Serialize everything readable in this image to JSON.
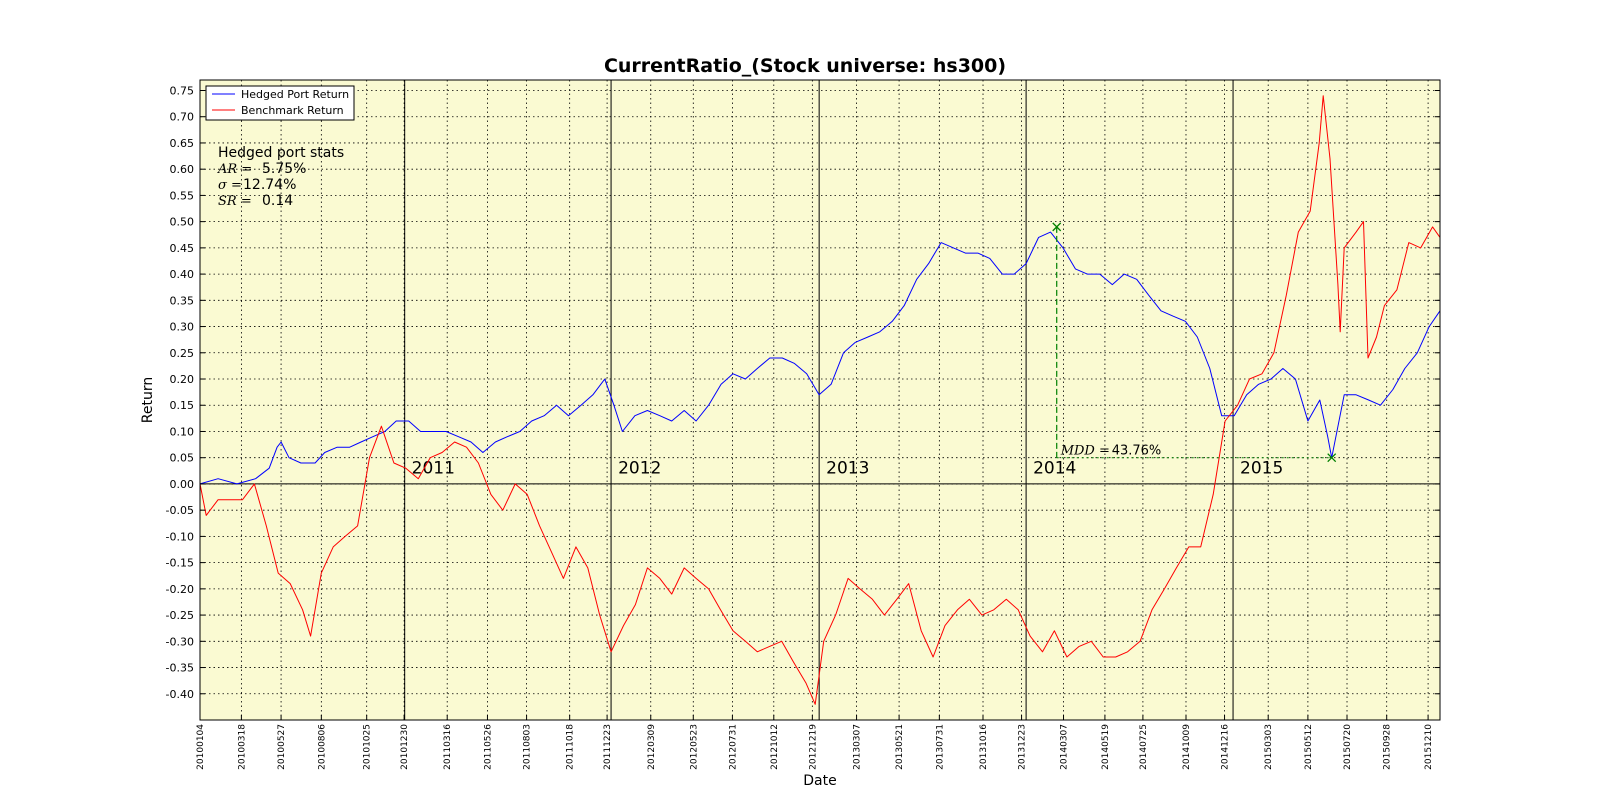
{
  "chart_data": {
    "type": "line",
    "title": "CurrentRatio_(Stock universe: hs300)",
    "xlabel": "Date",
    "ylabel": "Return",
    "ylim": [
      -0.45,
      0.77
    ],
    "xlim": [
      "2010-01-04",
      "2015-12-31"
    ],
    "grid": true,
    "background_color": "#fafad2",
    "yticks": [
      -0.4,
      -0.35,
      -0.3,
      -0.25,
      -0.2,
      -0.15,
      -0.1,
      -0.05,
      0.0,
      0.05,
      0.1,
      0.15,
      0.2,
      0.25,
      0.3,
      0.35,
      0.4,
      0.45,
      0.5,
      0.55,
      0.6,
      0.65,
      0.7,
      0.75
    ],
    "ytick_labels": [
      "-0.40",
      "-0.35",
      "-0.30",
      "-0.25",
      "-0.20",
      "-0.15",
      "-0.10",
      "-0.05",
      "0.00",
      "0.05",
      "0.10",
      "0.15",
      "0.20",
      "0.25",
      "0.30",
      "0.35",
      "0.40",
      "0.45",
      "0.50",
      "0.55",
      "0.60",
      "0.65",
      "0.70",
      "0.75"
    ],
    "xticks": [
      "20100104",
      "20100318",
      "20100527",
      "20100806",
      "20101025",
      "20101230",
      "20110316",
      "20110526",
      "20110803",
      "20111018",
      "20111223",
      "20120309",
      "20120523",
      "20120731",
      "20121012",
      "20121219",
      "20130307",
      "20130521",
      "20130731",
      "20131016",
      "20131223",
      "20140307",
      "20140519",
      "20140725",
      "20141009",
      "20141216",
      "20150303",
      "20150512",
      "20150720",
      "20150928",
      "20151210"
    ],
    "year_markers": [
      {
        "date": "2010-12-31",
        "label": "2011"
      },
      {
        "date": "2011-12-30",
        "label": "2012"
      },
      {
        "date": "2012-12-31",
        "label": "2013"
      },
      {
        "date": "2013-12-31",
        "label": "2014"
      },
      {
        "date": "2014-12-31",
        "label": "2015"
      }
    ],
    "legend": {
      "placement": "top-left",
      "entries": [
        "Hedged Port Return",
        "Benchmark Return"
      ]
    },
    "series": [
      {
        "name": "Hedged Port Return",
        "color": "#0000ff",
        "points": [
          [
            "2010-01-04",
            0.0
          ],
          [
            "2010-02-05",
            0.01
          ],
          [
            "2010-03-10",
            0.0
          ],
          [
            "2010-04-12",
            0.01
          ],
          [
            "2010-05-06",
            0.03
          ],
          [
            "2010-05-20",
            0.07
          ],
          [
            "2010-05-27",
            0.08
          ],
          [
            "2010-06-10",
            0.05
          ],
          [
            "2010-07-01",
            0.04
          ],
          [
            "2010-07-26",
            0.04
          ],
          [
            "2010-08-12",
            0.06
          ],
          [
            "2010-09-03",
            0.07
          ],
          [
            "2010-09-25",
            0.07
          ],
          [
            "2010-10-15",
            0.08
          ],
          [
            "2010-11-05",
            0.09
          ],
          [
            "2010-11-26",
            0.1
          ],
          [
            "2010-12-16",
            0.12
          ],
          [
            "2011-01-07",
            0.12
          ],
          [
            "2011-01-28",
            0.1
          ],
          [
            "2011-02-20",
            0.1
          ],
          [
            "2011-03-14",
            0.1
          ],
          [
            "2011-04-05",
            0.09
          ],
          [
            "2011-04-27",
            0.08
          ],
          [
            "2011-05-18",
            0.06
          ],
          [
            "2011-06-09",
            0.08
          ],
          [
            "2011-06-30",
            0.09
          ],
          [
            "2011-07-22",
            0.1
          ],
          [
            "2011-08-12",
            0.12
          ],
          [
            "2011-09-03",
            0.13
          ],
          [
            "2011-09-25",
            0.15
          ],
          [
            "2011-10-16",
            0.13
          ],
          [
            "2011-11-07",
            0.15
          ],
          [
            "2011-11-28",
            0.17
          ],
          [
            "2011-12-19",
            0.2
          ],
          [
            "2012-01-04",
            0.15
          ],
          [
            "2012-01-19",
            0.1
          ],
          [
            "2012-02-10",
            0.13
          ],
          [
            "2012-03-03",
            0.14
          ],
          [
            "2012-03-25",
            0.13
          ],
          [
            "2012-04-15",
            0.12
          ],
          [
            "2012-05-07",
            0.14
          ],
          [
            "2012-05-28",
            0.12
          ],
          [
            "2012-06-19",
            0.15
          ],
          [
            "2012-07-11",
            0.19
          ],
          [
            "2012-08-01",
            0.21
          ],
          [
            "2012-08-23",
            0.2
          ],
          [
            "2012-09-13",
            0.22
          ],
          [
            "2012-10-05",
            0.24
          ],
          [
            "2012-10-27",
            0.24
          ],
          [
            "2012-11-17",
            0.23
          ],
          [
            "2012-12-09",
            0.21
          ],
          [
            "2012-12-31",
            0.17
          ],
          [
            "2013-01-21",
            0.19
          ],
          [
            "2013-02-12",
            0.25
          ],
          [
            "2013-03-05",
            0.27
          ],
          [
            "2013-03-27",
            0.28
          ],
          [
            "2013-04-17",
            0.29
          ],
          [
            "2013-05-09",
            0.31
          ],
          [
            "2013-05-30",
            0.34
          ],
          [
            "2013-06-21",
            0.39
          ],
          [
            "2013-07-12",
            0.42
          ],
          [
            "2013-08-03",
            0.46
          ],
          [
            "2013-08-25",
            0.45
          ],
          [
            "2013-09-15",
            0.44
          ],
          [
            "2013-10-07",
            0.44
          ],
          [
            "2013-10-28",
            0.43
          ],
          [
            "2013-11-19",
            0.4
          ],
          [
            "2013-12-10",
            0.4
          ],
          [
            "2013-12-31",
            0.42
          ],
          [
            "2014-01-22",
            0.47
          ],
          [
            "2014-02-12",
            0.48
          ],
          [
            "2014-03-06",
            0.45
          ],
          [
            "2014-03-28",
            0.41
          ],
          [
            "2014-04-18",
            0.4
          ],
          [
            "2014-05-10",
            0.4
          ],
          [
            "2014-06-01",
            0.38
          ],
          [
            "2014-06-22",
            0.4
          ],
          [
            "2014-07-14",
            0.39
          ],
          [
            "2014-08-04",
            0.36
          ],
          [
            "2014-08-26",
            0.33
          ],
          [
            "2014-09-16",
            0.32
          ],
          [
            "2014-10-08",
            0.31
          ],
          [
            "2014-10-29",
            0.28
          ],
          [
            "2014-11-20",
            0.22
          ],
          [
            "2014-12-11",
            0.13
          ],
          [
            "2015-01-02",
            0.13
          ],
          [
            "2015-01-24",
            0.17
          ],
          [
            "2015-02-14",
            0.19
          ],
          [
            "2015-03-08",
            0.2
          ],
          [
            "2015-03-29",
            0.22
          ],
          [
            "2015-04-20",
            0.2
          ],
          [
            "2015-05-12",
            0.12
          ],
          [
            "2015-06-02",
            0.16
          ],
          [
            "2015-06-16",
            0.09
          ],
          [
            "2015-06-23",
            0.05
          ],
          [
            "2015-07-15",
            0.17
          ],
          [
            "2015-08-05",
            0.17
          ],
          [
            "2015-08-27",
            0.16
          ],
          [
            "2015-09-17",
            0.15
          ],
          [
            "2015-10-09",
            0.18
          ],
          [
            "2015-10-30",
            0.22
          ],
          [
            "2015-11-21",
            0.25
          ],
          [
            "2015-12-12",
            0.3
          ],
          [
            "2015-12-31",
            0.33
          ]
        ]
      },
      {
        "name": "Benchmark Return",
        "color": "#ff0000",
        "points": [
          [
            "2010-01-04",
            0.0
          ],
          [
            "2010-01-15",
            -0.06
          ],
          [
            "2010-02-05",
            -0.03
          ],
          [
            "2010-02-26",
            -0.03
          ],
          [
            "2010-03-20",
            -0.03
          ],
          [
            "2010-04-10",
            0.0
          ],
          [
            "2010-05-01",
            -0.08
          ],
          [
            "2010-05-22",
            -0.17
          ],
          [
            "2010-06-12",
            -0.19
          ],
          [
            "2010-07-04",
            -0.24
          ],
          [
            "2010-07-18",
            -0.29
          ],
          [
            "2010-08-06",
            -0.17
          ],
          [
            "2010-08-27",
            -0.12
          ],
          [
            "2010-09-17",
            -0.1
          ],
          [
            "2010-10-09",
            -0.08
          ],
          [
            "2010-10-30",
            0.05
          ],
          [
            "2010-11-20",
            0.11
          ],
          [
            "2010-12-12",
            0.04
          ],
          [
            "2011-01-02",
            0.03
          ],
          [
            "2011-01-24",
            0.01
          ],
          [
            "2011-02-14",
            0.05
          ],
          [
            "2011-03-07",
            0.06
          ],
          [
            "2011-03-29",
            0.08
          ],
          [
            "2011-04-19",
            0.07
          ],
          [
            "2011-05-10",
            0.04
          ],
          [
            "2011-06-01",
            -0.02
          ],
          [
            "2011-06-22",
            -0.05
          ],
          [
            "2011-07-14",
            0.0
          ],
          [
            "2011-08-04",
            -0.02
          ],
          [
            "2011-08-26",
            -0.08
          ],
          [
            "2011-09-16",
            -0.13
          ],
          [
            "2011-10-07",
            -0.18
          ],
          [
            "2011-10-29",
            -0.12
          ],
          [
            "2011-11-19",
            -0.16
          ],
          [
            "2011-12-10",
            -0.25
          ],
          [
            "2011-12-30",
            -0.32
          ],
          [
            "2012-01-21",
            -0.27
          ],
          [
            "2012-02-11",
            -0.23
          ],
          [
            "2012-03-03",
            -0.16
          ],
          [
            "2012-03-25",
            -0.18
          ],
          [
            "2012-04-15",
            -0.21
          ],
          [
            "2012-05-07",
            -0.16
          ],
          [
            "2012-05-28",
            -0.18
          ],
          [
            "2012-06-19",
            -0.2
          ],
          [
            "2012-07-10",
            -0.24
          ],
          [
            "2012-08-01",
            -0.28
          ],
          [
            "2012-08-23",
            -0.3
          ],
          [
            "2012-09-13",
            -0.32
          ],
          [
            "2012-10-04",
            -0.31
          ],
          [
            "2012-10-26",
            -0.3
          ],
          [
            "2012-11-16",
            -0.34
          ],
          [
            "2012-12-08",
            -0.38
          ],
          [
            "2012-12-24",
            -0.42
          ],
          [
            "2013-01-08",
            -0.3
          ],
          [
            "2013-01-29",
            -0.25
          ],
          [
            "2013-02-20",
            -0.18
          ],
          [
            "2013-03-13",
            -0.2
          ],
          [
            "2013-04-04",
            -0.22
          ],
          [
            "2013-04-25",
            -0.25
          ],
          [
            "2013-05-17",
            -0.22
          ],
          [
            "2013-06-07",
            -0.19
          ],
          [
            "2013-06-29",
            -0.28
          ],
          [
            "2013-07-20",
            -0.33
          ],
          [
            "2013-08-10",
            -0.27
          ],
          [
            "2013-09-01",
            -0.24
          ],
          [
            "2013-09-22",
            -0.22
          ],
          [
            "2013-10-14",
            -0.25
          ],
          [
            "2013-11-04",
            -0.24
          ],
          [
            "2013-11-26",
            -0.22
          ],
          [
            "2013-12-17",
            -0.24
          ],
          [
            "2014-01-07",
            -0.29
          ],
          [
            "2014-01-29",
            -0.32
          ],
          [
            "2014-02-19",
            -0.28
          ],
          [
            "2014-03-13",
            -0.33
          ],
          [
            "2014-04-03",
            -0.31
          ],
          [
            "2014-04-25",
            -0.3
          ],
          [
            "2014-05-16",
            -0.33
          ],
          [
            "2014-06-07",
            -0.33
          ],
          [
            "2014-06-28",
            -0.32
          ],
          [
            "2014-07-20",
            -0.3
          ],
          [
            "2014-08-10",
            -0.24
          ],
          [
            "2014-09-01",
            -0.2
          ],
          [
            "2014-09-22",
            -0.16
          ],
          [
            "2014-10-14",
            -0.12
          ],
          [
            "2014-11-04",
            -0.12
          ],
          [
            "2014-11-26",
            -0.02
          ],
          [
            "2014-12-17",
            0.12
          ],
          [
            "2015-01-08",
            0.15
          ],
          [
            "2015-01-29",
            0.2
          ],
          [
            "2015-02-20",
            0.21
          ],
          [
            "2015-03-13",
            0.25
          ],
          [
            "2015-04-04",
            0.36
          ],
          [
            "2015-04-25",
            0.48
          ],
          [
            "2015-05-16",
            0.52
          ],
          [
            "2015-06-01",
            0.65
          ],
          [
            "2015-06-08",
            0.74
          ],
          [
            "2015-06-20",
            0.62
          ],
          [
            "2015-07-04",
            0.38
          ],
          [
            "2015-07-08",
            0.29
          ],
          [
            "2015-07-15",
            0.45
          ],
          [
            "2015-08-05",
            0.48
          ],
          [
            "2015-08-18",
            0.5
          ],
          [
            "2015-08-26",
            0.24
          ],
          [
            "2015-09-10",
            0.28
          ],
          [
            "2015-09-24",
            0.34
          ],
          [
            "2015-10-16",
            0.37
          ],
          [
            "2015-11-06",
            0.46
          ],
          [
            "2015-11-27",
            0.45
          ],
          [
            "2015-12-18",
            0.49
          ],
          [
            "2015-12-31",
            0.47
          ]
        ]
      }
    ],
    "stats_box": {
      "heading": "Hedged port stats",
      "rows": [
        {
          "symbol": "AR =",
          "value": "5.75%"
        },
        {
          "symbol": "σ =",
          "value": "12.74%"
        },
        {
          "symbol": "SR =",
          "value": "0.14"
        }
      ]
    },
    "max_drawdown": {
      "peak": [
        "2014-02-23",
        0.49
      ],
      "trough": [
        "2015-06-23",
        0.05
      ],
      "label_symbol": "MDD =",
      "label_value": "43.76%",
      "color": "#008000"
    }
  }
}
